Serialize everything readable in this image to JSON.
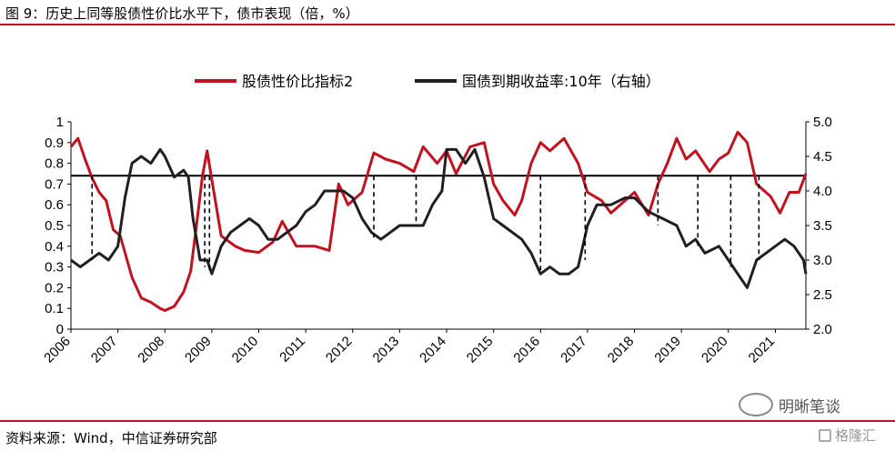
{
  "header": {
    "title": "图 9：历史上同等股债性价比水平下，债市表现（倍，%）"
  },
  "footer": {
    "source": "资料来源：Wind，中信证券研究部"
  },
  "watermarks": {
    "wechat": "明晰笔谈",
    "site": "格隆汇"
  },
  "colors": {
    "red": "#c1121f",
    "black": "#231f20"
  },
  "chart_data": {
    "type": "line",
    "legend": {
      "position": "top"
    },
    "x_ticks": [
      "2006",
      "2007",
      "2008",
      "2009",
      "2010",
      "2011",
      "2012",
      "2013",
      "2014",
      "2015",
      "2016",
      "2017",
      "2018",
      "2019",
      "2020",
      "2021"
    ],
    "ylim_left": [
      0,
      1
    ],
    "yticks_left": [
      "0",
      "0.1",
      "0.2",
      "0.3",
      "0.4",
      "0.5",
      "0.6",
      "0.7",
      "0.8",
      "0.9",
      "1"
    ],
    "ylim_right": [
      2.0,
      5.0
    ],
    "yticks_right": [
      "2.0",
      "2.5",
      "3.0",
      "3.5",
      "4.0",
      "4.5",
      "5.0"
    ],
    "reference_line": {
      "value_left": 0.74
    },
    "series": [
      {
        "name": "股债性价比指标2",
        "axis": "left",
        "color": "#c1121f",
        "x": [
          2006.0,
          2006.15,
          2006.3,
          2006.45,
          2006.6,
          2006.75,
          2006.9,
          2007.05,
          2007.3,
          2007.5,
          2007.7,
          2007.9,
          2008.0,
          2008.2,
          2008.4,
          2008.55,
          2008.7,
          2008.8,
          2008.9,
          2009.0,
          2009.2,
          2009.5,
          2009.7,
          2010.0,
          2010.3,
          2010.5,
          2010.8,
          2011.0,
          2011.2,
          2011.5,
          2011.7,
          2011.9,
          2012.2,
          2012.45,
          2012.7,
          2013.0,
          2013.3,
          2013.5,
          2013.8,
          2014.0,
          2014.2,
          2014.5,
          2014.8,
          2015.0,
          2015.2,
          2015.45,
          2015.6,
          2015.8,
          2016.0,
          2016.2,
          2016.5,
          2016.8,
          2017.0,
          2017.3,
          2017.5,
          2017.8,
          2018.0,
          2018.3,
          2018.5,
          2018.7,
          2018.9,
          2019.1,
          2019.3,
          2019.6,
          2019.8,
          2020.0,
          2020.2,
          2020.4,
          2020.6,
          2020.9,
          2021.1,
          2021.3,
          2021.5,
          2021.65
        ],
        "values": [
          0.88,
          0.92,
          0.82,
          0.73,
          0.66,
          0.62,
          0.48,
          0.45,
          0.25,
          0.15,
          0.13,
          0.1,
          0.09,
          0.11,
          0.18,
          0.28,
          0.55,
          0.74,
          0.86,
          0.72,
          0.45,
          0.4,
          0.38,
          0.37,
          0.42,
          0.52,
          0.4,
          0.4,
          0.4,
          0.38,
          0.7,
          0.6,
          0.66,
          0.85,
          0.82,
          0.8,
          0.76,
          0.88,
          0.8,
          0.86,
          0.75,
          0.88,
          0.9,
          0.7,
          0.62,
          0.55,
          0.62,
          0.8,
          0.9,
          0.86,
          0.92,
          0.8,
          0.66,
          0.62,
          0.56,
          0.62,
          0.66,
          0.55,
          0.7,
          0.8,
          0.92,
          0.82,
          0.86,
          0.76,
          0.82,
          0.85,
          0.95,
          0.9,
          0.7,
          0.64,
          0.56,
          0.66,
          0.66,
          0.75
        ]
      },
      {
        "name": "国债到期收益率:10年（右轴）",
        "axis": "right",
        "color": "#231f20",
        "x": [
          2006.0,
          2006.2,
          2006.4,
          2006.6,
          2006.8,
          2007.0,
          2007.15,
          2007.3,
          2007.5,
          2007.7,
          2007.9,
          2008.0,
          2008.2,
          2008.4,
          2008.5,
          2008.6,
          2008.75,
          2008.9,
          2009.0,
          2009.2,
          2009.4,
          2009.6,
          2009.8,
          2010.0,
          2010.2,
          2010.4,
          2010.6,
          2010.8,
          2011.0,
          2011.2,
          2011.4,
          2011.6,
          2011.8,
          2012.0,
          2012.2,
          2012.4,
          2012.6,
          2012.8,
          2013.0,
          2013.3,
          2013.5,
          2013.7,
          2013.9,
          2014.0,
          2014.2,
          2014.4,
          2014.6,
          2014.8,
          2015.0,
          2015.2,
          2015.4,
          2015.6,
          2015.8,
          2016.0,
          2016.2,
          2016.4,
          2016.6,
          2016.8,
          2017.0,
          2017.2,
          2017.5,
          2017.8,
          2018.0,
          2018.3,
          2018.6,
          2018.9,
          2019.1,
          2019.3,
          2019.5,
          2019.8,
          2020.0,
          2020.2,
          2020.4,
          2020.6,
          2020.8,
          2021.0,
          2021.2,
          2021.4,
          2021.6,
          2021.65
        ],
        "values": [
          3.0,
          2.9,
          3.0,
          3.1,
          3.0,
          3.2,
          3.9,
          4.4,
          4.5,
          4.4,
          4.6,
          4.5,
          4.2,
          4.3,
          4.2,
          3.6,
          3.0,
          3.0,
          2.8,
          3.2,
          3.4,
          3.5,
          3.6,
          3.5,
          3.3,
          3.3,
          3.4,
          3.5,
          3.7,
          3.8,
          4.0,
          4.0,
          4.0,
          3.9,
          3.6,
          3.4,
          3.3,
          3.4,
          3.5,
          3.5,
          3.5,
          3.8,
          4.0,
          4.6,
          4.6,
          4.4,
          4.6,
          4.2,
          3.6,
          3.5,
          3.4,
          3.3,
          3.1,
          2.8,
          2.9,
          2.8,
          2.8,
          2.9,
          3.5,
          3.8,
          3.8,
          3.9,
          3.9,
          3.7,
          3.6,
          3.5,
          3.2,
          3.3,
          3.1,
          3.2,
          3.0,
          2.8,
          2.6,
          3.0,
          3.1,
          3.2,
          3.3,
          3.2,
          3.0,
          2.8
        ]
      }
    ],
    "dashed_markers": [
      {
        "x": 2006.45,
        "left": 0.74,
        "right": 3.0
      },
      {
        "x": 2008.85,
        "left": 0.74,
        "right": 2.9
      },
      {
        "x": 2008.95,
        "left": 0.74,
        "right": 2.8
      },
      {
        "x": 2012.45,
        "left": 0.74,
        "right": 3.3
      },
      {
        "x": 2013.35,
        "left": 0.74,
        "right": 3.5
      },
      {
        "x": 2016.0,
        "left": 0.74,
        "right": 2.8
      },
      {
        "x": 2016.95,
        "left": 0.74,
        "right": 3.0
      },
      {
        "x": 2018.5,
        "left": 0.74,
        "right": 3.5
      },
      {
        "x": 2019.35,
        "left": 0.74,
        "right": 3.2
      },
      {
        "x": 2020.05,
        "left": 0.74,
        "right": 2.9
      },
      {
        "x": 2020.65,
        "left": 0.74,
        "right": 3.0
      }
    ]
  }
}
